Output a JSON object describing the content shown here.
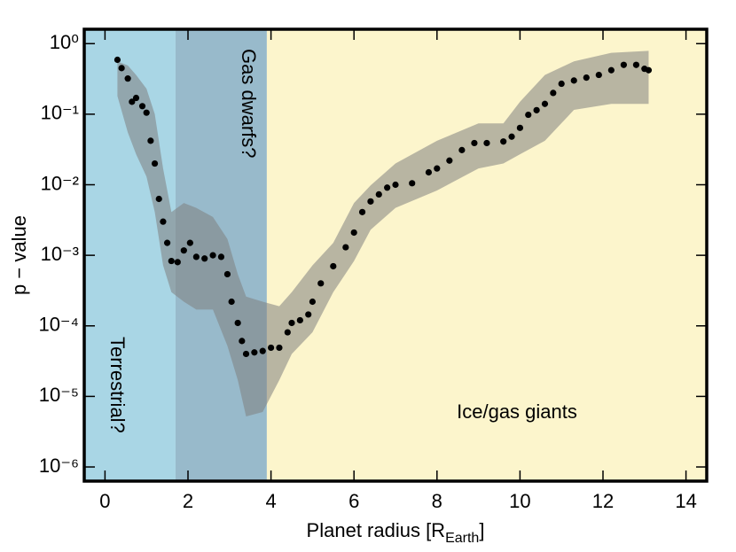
{
  "chart_data": {
    "type": "scatter",
    "ylabel": "p − value",
    "xlabel": {
      "text": "Planet radius  [R",
      "sub": "Earth",
      "close": "]"
    },
    "xlim": [
      -0.5,
      14.5
    ],
    "xticks": [
      0,
      2,
      4,
      6,
      8,
      10,
      12,
      14
    ],
    "ylim": [
      6.3e-07,
      1.6
    ],
    "yscale": "log",
    "yticks": [
      {
        "value": 1,
        "label": "10⁰"
      },
      {
        "value": 0.1,
        "label": "10⁻¹"
      },
      {
        "value": 0.01,
        "label": "10⁻²"
      },
      {
        "value": 0.001,
        "label": "10⁻³"
      },
      {
        "value": 0.0001,
        "label": "10⁻⁴"
      },
      {
        "value": 1e-05,
        "label": "10⁻⁵"
      },
      {
        "value": 1e-06,
        "label": "10⁻⁶"
      }
    ],
    "regions": [
      {
        "label": "Terrestrial?",
        "x": [
          -0.5,
          1.7
        ],
        "color": "#a9d6e5"
      },
      {
        "label": "Gas dwarfs?",
        "x": [
          1.7,
          3.9
        ],
        "color": "#98bacb"
      },
      {
        "label": "Ice/gas giants",
        "x": [
          3.9,
          14.5
        ],
        "color": "#fcf5cc"
      }
    ],
    "band": {
      "color": "#808080",
      "x": [
        0.3,
        0.55,
        0.75,
        1.0,
        1.2,
        1.4,
        1.6,
        1.9,
        2.2,
        2.6,
        2.95,
        3.2,
        3.4,
        3.8,
        4.2,
        4.5,
        5.0,
        5.5,
        6.0,
        6.4,
        7.0,
        8.0,
        9.0,
        9.6,
        10.0,
        10.6,
        11.3,
        12.2,
        13.1
      ],
      "upper": [
        0.56,
        0.49,
        0.36,
        0.23,
        0.1,
        0.017,
        0.0041,
        0.0055,
        0.0047,
        0.0035,
        0.0017,
        0.00054,
        0.00026,
        0.00022,
        0.00019,
        0.0003,
        0.00072,
        0.0015,
        0.0055,
        0.0098,
        0.02,
        0.042,
        0.074,
        0.074,
        0.15,
        0.36,
        0.56,
        0.74,
        0.79
      ],
      "lower": [
        0.18,
        0.055,
        0.027,
        0.013,
        0.0041,
        0.00072,
        0.0003,
        0.00022,
        0.00017,
        0.00017,
        5.2e-05,
        1.7e-05,
        5.2e-06,
        6e-06,
        1.7e-05,
        4e-05,
        8.1e-05,
        0.0003,
        0.00083,
        0.0023,
        0.0047,
        0.0083,
        0.017,
        0.02,
        0.027,
        0.042,
        0.115,
        0.14,
        0.14
      ]
    },
    "color": "#000000",
    "x": [
      0.3,
      0.4,
      0.55,
      0.65,
      0.75,
      0.9,
      1.0,
      1.1,
      1.2,
      1.3,
      1.4,
      1.5,
      1.6,
      1.75,
      1.9,
      2.05,
      2.2,
      2.4,
      2.6,
      2.8,
      2.95,
      3.05,
      3.2,
      3.3,
      3.4,
      3.6,
      3.8,
      4.0,
      4.2,
      4.4,
      4.5,
      4.7,
      4.9,
      5.0,
      5.2,
      5.5,
      5.8,
      6.0,
      6.2,
      6.4,
      6.6,
      6.8,
      7.0,
      7.4,
      7.8,
      8.0,
      8.3,
      8.6,
      8.9,
      9.2,
      9.6,
      9.8,
      10.0,
      10.2,
      10.4,
      10.6,
      10.8,
      11.0,
      11.3,
      11.6,
      11.9,
      12.2,
      12.5,
      12.8,
      13.0,
      13.1
    ],
    "values": [
      0.59,
      0.45,
      0.32,
      0.15,
      0.17,
      0.13,
      0.105,
      0.042,
      0.02,
      0.0063,
      0.003,
      0.0015,
      0.00083,
      0.0008,
      0.00117,
      0.0015,
      0.00095,
      0.0009,
      0.001,
      0.00095,
      0.00054,
      0.00022,
      0.00011,
      6.1e-05,
      4e-05,
      4.2e-05,
      4.4e-05,
      4.9e-05,
      4.9e-05,
      8.1e-05,
      0.00011,
      0.00012,
      0.000145,
      0.00022,
      0.0004,
      0.0007,
      0.0013,
      0.0021,
      0.0041,
      0.0058,
      0.0073,
      0.0091,
      0.01,
      0.0105,
      0.015,
      0.017,
      0.022,
      0.031,
      0.039,
      0.039,
      0.041,
      0.048,
      0.064,
      0.098,
      0.114,
      0.14,
      0.2,
      0.27,
      0.3,
      0.33,
      0.36,
      0.42,
      0.5,
      0.5,
      0.44,
      0.42
    ]
  }
}
